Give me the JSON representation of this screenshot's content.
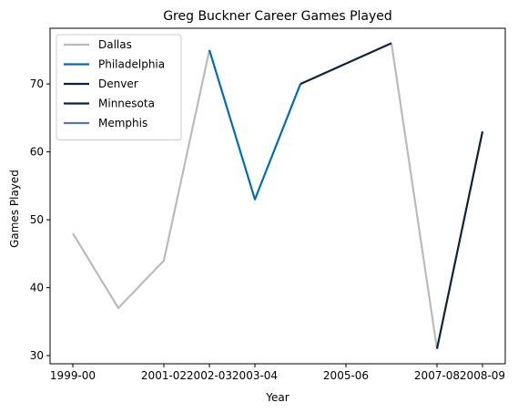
{
  "chart_data": {
    "type": "line",
    "title": "Greg Buckner Career Games Played",
    "xlabel": "Year",
    "ylabel": "Games Played",
    "x": [
      "1999-00",
      "2000-01",
      "2001-02",
      "2002-03",
      "2003-04",
      "2004-05",
      "2005-06",
      "2006-07",
      "2007-08",
      "2008-09"
    ],
    "x_tick_labels": [
      "1999-00",
      "2001-02",
      "2002-03",
      "2003-04",
      "2005-06",
      "2007-08",
      "2008-09"
    ],
    "y_ticks": [
      30,
      40,
      50,
      60,
      70
    ],
    "ylim": [
      28.8,
      78.2
    ],
    "grid": false,
    "legend_position": "top-left",
    "series": [
      {
        "name": "Dallas",
        "color": "#bbbbbb",
        "segments": [
          [
            {
              "x": "1999-00",
              "y": 48
            },
            {
              "x": "2000-01",
              "y": 37
            },
            {
              "x": "2001-02",
              "y": 44
            },
            {
              "x": "2002-03",
              "y": 75
            }
          ],
          [
            {
              "x": "2006-07",
              "y": 76
            },
            {
              "x": "2007-08",
              "y": 31
            }
          ]
        ]
      },
      {
        "name": "Philadelphia",
        "color": "#006bb6",
        "segments": [
          [
            {
              "x": "2002-03",
              "y": 75
            },
            {
              "x": "2003-04",
              "y": 53
            },
            {
              "x": "2004-05",
              "y": 70
            }
          ]
        ]
      },
      {
        "name": "Denver",
        "color": "#0e2240",
        "segments": [
          [
            {
              "x": "2004-05",
              "y": 70
            },
            {
              "x": "2005-06",
              "y": 73
            },
            {
              "x": "2006-07",
              "y": 76
            }
          ]
        ]
      },
      {
        "name": "Minnesota",
        "color": "#0c2340",
        "segments": [
          [
            {
              "x": "2007-08",
              "y": 31
            },
            {
              "x": "2008-09",
              "y": 63
            }
          ]
        ]
      },
      {
        "name": "Memphis",
        "color": "#5d76a9",
        "segments": []
      }
    ]
  }
}
